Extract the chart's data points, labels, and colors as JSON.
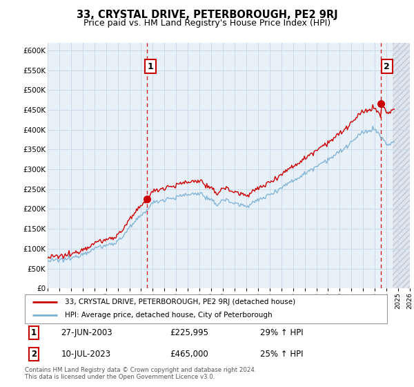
{
  "title": "33, CRYSTAL DRIVE, PETERBOROUGH, PE2 9RJ",
  "subtitle": "Price paid vs. HM Land Registry's House Price Index (HPI)",
  "legend_label_red": "33, CRYSTAL DRIVE, PETERBOROUGH, PE2 9RJ (detached house)",
  "legend_label_blue": "HPI: Average price, detached house, City of Peterborough",
  "annotation1_date": "27-JUN-2003",
  "annotation1_price": "£225,995",
  "annotation1_hpi": "29% ↑ HPI",
  "annotation1_year": 2003.49,
  "annotation1_value": 225995,
  "annotation2_date": "10-JUL-2023",
  "annotation2_price": "£465,000",
  "annotation2_hpi": "25% ↑ HPI",
  "annotation2_year": 2023.53,
  "annotation2_value": 465000,
  "footer": "Contains HM Land Registry data © Crown copyright and database right 2024.\nThis data is licensed under the Open Government Licence v3.0.",
  "ylim": [
    0,
    620000
  ],
  "xlim_start": 1995,
  "xlim_end": 2026,
  "data_end": 2024.5,
  "red_color": "#cc0000",
  "blue_color": "#7aafd4",
  "grid_color": "#c8daea",
  "plot_bg_color": "#e8f0f8",
  "hatch_color": "#c0c8d0"
}
